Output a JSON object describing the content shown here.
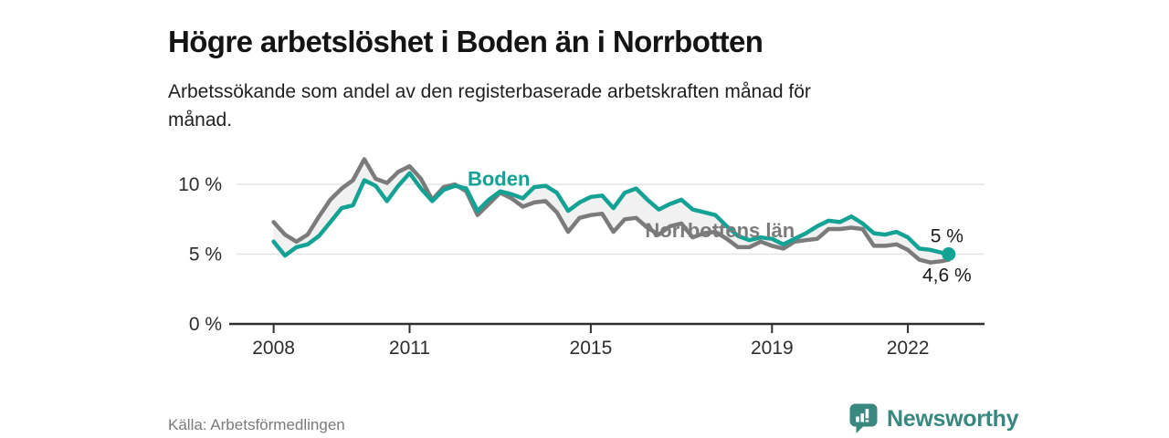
{
  "title": "Högre arbetslöshet i Boden än i Norrbotten",
  "subtitle": {
    "line1": "Arbetssökande som andel av den registerbaserade arbetskraften månad för",
    "line2": "månad."
  },
  "source": "Källa: Arbetsförmedlingen",
  "logo": {
    "text": "Newsworthy",
    "icon": "bar-chart-speech-bubble-icon",
    "color": "#38887f"
  },
  "colors": {
    "boden": "#14a294",
    "norrbotten": "#7b7b7b",
    "band": "#f1f1f1",
    "grid": "#e4e4e4",
    "axis": "#2f2f2f",
    "text": "#1a1a1a",
    "muted": "#7a7a7a"
  },
  "chart_data": {
    "type": "line",
    "title": "Högre arbetslöshet i Boden än i Norrbotten",
    "xlabel": "",
    "ylabel": "%",
    "grid": "horizontal",
    "legend": "inline-labels",
    "xlim": [
      2007.1,
      2023.65
    ],
    "ylim": [
      0,
      12.75
    ],
    "xticks": [
      {
        "value": 2008,
        "label": "2008"
      },
      {
        "value": 2011,
        "label": "2011"
      },
      {
        "value": 2015,
        "label": "2015"
      },
      {
        "value": 2019,
        "label": "2019"
      },
      {
        "value": 2022,
        "label": "2022"
      }
    ],
    "yticks": [
      {
        "value": 0,
        "label": "0 %"
      },
      {
        "value": 5,
        "label": "5 %"
      },
      {
        "value": 10,
        "label": "10 %"
      }
    ],
    "x": [
      2008,
      2008.25,
      2008.5,
      2008.75,
      2009,
      2009.25,
      2009.5,
      2009.75,
      2010,
      2010.25,
      2010.5,
      2010.75,
      2011,
      2011.25,
      2011.5,
      2011.75,
      2012,
      2012.25,
      2012.5,
      2012.75,
      2013,
      2013.25,
      2013.5,
      2013.75,
      2014,
      2014.25,
      2014.5,
      2014.75,
      2015,
      2015.25,
      2015.5,
      2015.75,
      2016,
      2016.25,
      2016.5,
      2016.75,
      2017,
      2017.25,
      2017.5,
      2017.75,
      2018,
      2018.25,
      2018.5,
      2018.75,
      2019,
      2019.25,
      2019.5,
      2019.75,
      2020,
      2020.25,
      2020.5,
      2020.75,
      2021,
      2021.25,
      2021.5,
      2021.75,
      2022,
      2022.25,
      2022.5,
      2022.75,
      2022.9
    ],
    "series": [
      {
        "name": "Boden",
        "color": "#14a294",
        "end_label": "5 %",
        "end_dot": true,
        "label_at": [
          2012.97,
          9.9
        ],
        "values": [
          5.9,
          4.9,
          5.5,
          5.7,
          6.3,
          7.3,
          8.3,
          8.5,
          10.3,
          9.9,
          8.8,
          9.9,
          10.8,
          9.7,
          8.8,
          9.6,
          9.9,
          9.7,
          8.1,
          8.9,
          9.5,
          9.3,
          9.0,
          9.8,
          9.9,
          9.4,
          8.1,
          8.7,
          9.1,
          9.2,
          8.3,
          9.4,
          9.7,
          8.9,
          8.2,
          8.6,
          8.9,
          8.2,
          8.0,
          7.8,
          7.0,
          6.3,
          6.0,
          6.2,
          6.1,
          5.7,
          6.1,
          6.5,
          7.0,
          7.4,
          7.3,
          7.7,
          7.2,
          6.5,
          6.4,
          6.6,
          6.2,
          5.4,
          5.3,
          5.1,
          5.0
        ]
      },
      {
        "name": "Norrbottens län",
        "color": "#7b7b7b",
        "end_label": "4,6 %",
        "end_dot": false,
        "label_at": [
          2017.85,
          6.2
        ],
        "values": [
          7.3,
          6.4,
          5.9,
          6.4,
          7.7,
          8.9,
          9.7,
          10.3,
          11.8,
          10.4,
          10.1,
          10.9,
          11.3,
          10.4,
          8.9,
          9.8,
          10.0,
          9.5,
          7.8,
          8.6,
          9.4,
          9.0,
          8.4,
          8.7,
          8.8,
          8.0,
          6.6,
          7.6,
          7.8,
          7.9,
          6.6,
          7.5,
          7.6,
          6.9,
          6.4,
          7.0,
          7.2,
          6.2,
          6.5,
          6.6,
          6.1,
          5.5,
          5.5,
          5.9,
          5.6,
          5.4,
          5.9,
          6.0,
          6.1,
          6.8,
          6.8,
          6.9,
          6.8,
          5.6,
          5.6,
          5.7,
          5.3,
          4.6,
          4.4,
          4.5,
          4.6
        ]
      }
    ]
  }
}
